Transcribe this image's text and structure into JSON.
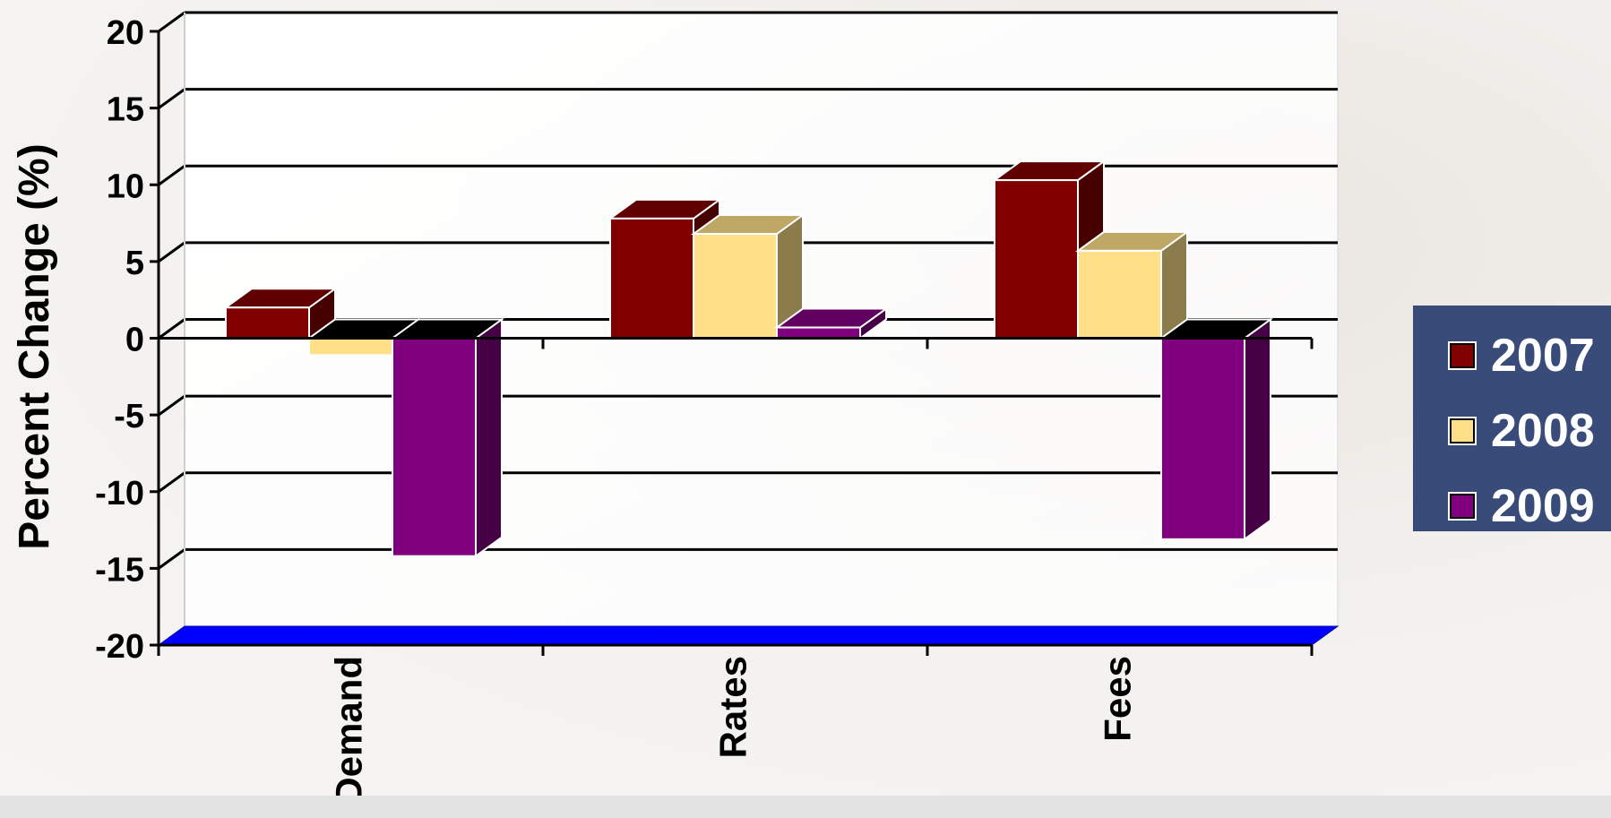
{
  "chart_data": {
    "type": "bar",
    "ylabel": "Percent Change (%)",
    "ylim": [
      -20,
      20
    ],
    "yticks": [
      "20",
      "15",
      "10",
      "5",
      "0",
      "-5",
      "-10",
      "-15",
      "-20"
    ],
    "categories": [
      "Demand",
      "Rates",
      "Fees"
    ],
    "series": [
      {
        "name": "2007",
        "color": "#800000",
        "values": [
          2,
          7.8,
          10.3
        ]
      },
      {
        "name": "2008",
        "color": "#ffdf88",
        "values": [
          -1.1,
          6.8,
          5.7
        ]
      },
      {
        "name": "2009",
        "color": "#800080",
        "values": [
          -14.2,
          0.7,
          -13.1
        ]
      }
    ],
    "grid": true,
    "legend_position": "right",
    "floor_color": "#0000ff"
  }
}
